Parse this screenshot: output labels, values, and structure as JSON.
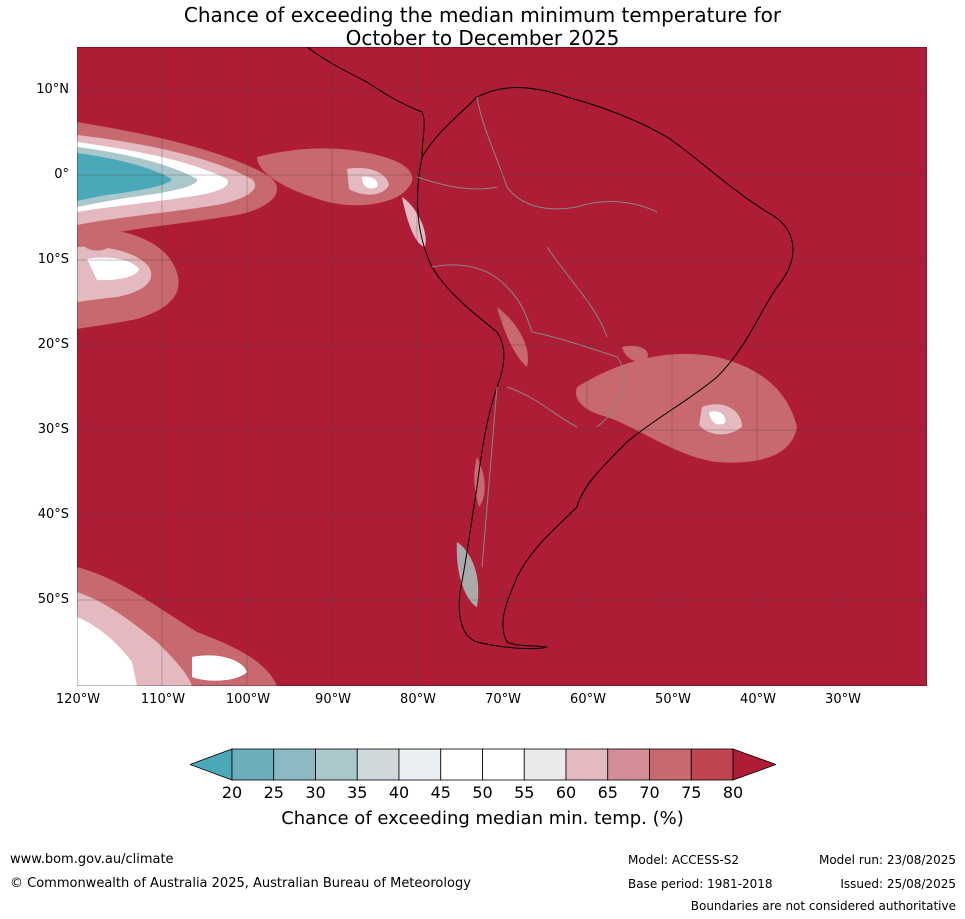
{
  "title": {
    "line1": "Chance of exceeding the median minimum temperature for",
    "line2": "October to December 2025"
  },
  "map": {
    "region": "South America and eastern Pacific",
    "background_category": ">80",
    "lat_labels": [
      "10°N",
      "0°",
      "10°S",
      "20°S",
      "30°S",
      "40°S",
      "50°S"
    ],
    "lon_labels": [
      "120°W",
      "110°W",
      "100°W",
      "90°W",
      "80°W",
      "70°W",
      "60°W",
      "50°W",
      "40°W",
      "30°W"
    ]
  },
  "colorbar": {
    "ticks": [
      "20",
      "25",
      "30",
      "35",
      "40",
      "45",
      "50",
      "55",
      "60",
      "65",
      "70",
      "75",
      "80"
    ],
    "colors": [
      "#4ba8b8",
      "#6dadbb",
      "#8db9c5",
      "#aac7cc",
      "#cfd9dc",
      "#e9eff2",
      "#ffffff",
      "#ffffff",
      "#ebe9ea",
      "#e4b9bf",
      "#d58e97",
      "#c8686f",
      "#bf4651",
      "#ae1c35"
    ],
    "label": "Chance of exceeding median min. temp. (%)"
  },
  "footer": {
    "website": "www.bom.gov.au/climate",
    "copyright": "© Commonwealth of Australia 2025, Australian Bureau of Meteorology",
    "model": "Model: ACCESS-S2",
    "base_period": "Base period: 1981-2018",
    "model_run": "Model run: 23/08/2025",
    "issued": "Issued: 25/08/2025",
    "disclaimer": "Boundaries are not considered authoritative"
  }
}
